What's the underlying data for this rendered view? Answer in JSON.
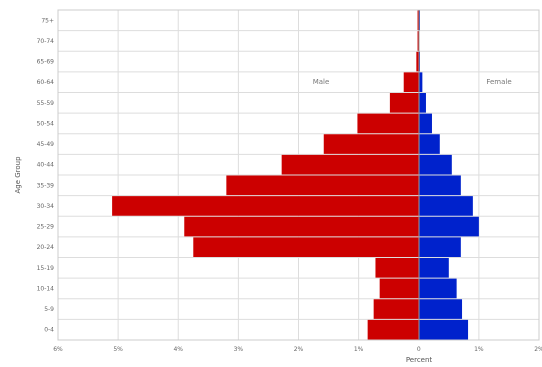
{
  "chart_data": {
    "type": "bar",
    "orientation": "horizontal-diverging",
    "title": "",
    "xlabel": "Percent",
    "ylabel": "Age Group",
    "categories": [
      "0-4",
      "5-9",
      "10-14",
      "15-19",
      "20-24",
      "25-29",
      "30-34",
      "35-39",
      "40-44",
      "45-49",
      "50-54",
      "55-59",
      "60-64",
      "65-69",
      "70-74",
      "75+"
    ],
    "x_ticks": [
      -6,
      -5,
      -4,
      -3,
      -2,
      -1,
      0,
      1,
      2
    ],
    "x_tick_labels": [
      "6%",
      "5%",
      "4%",
      "3%",
      "2%",
      "1%",
      "0",
      "1%",
      "2%"
    ],
    "xlim": [
      -6,
      2
    ],
    "grid": true,
    "series": [
      {
        "name": "Male",
        "color": "#cc0000",
        "values": [
          -0.85,
          -0.75,
          -0.65,
          -0.72,
          -3.75,
          -3.9,
          -5.1,
          -3.2,
          -2.28,
          -1.58,
          -1.02,
          -0.48,
          -0.25,
          -0.04,
          -0.02,
          -0.02
        ]
      },
      {
        "name": "Female",
        "color": "#0022cc",
        "values": [
          0.82,
          0.72,
          0.63,
          0.5,
          0.7,
          1.0,
          0.9,
          0.7,
          0.55,
          0.35,
          0.22,
          0.12,
          0.06,
          0.02,
          0.01,
          0.02
        ]
      }
    ],
    "legend": [
      "Male",
      "Female"
    ],
    "legend_placement": "inside-top"
  }
}
